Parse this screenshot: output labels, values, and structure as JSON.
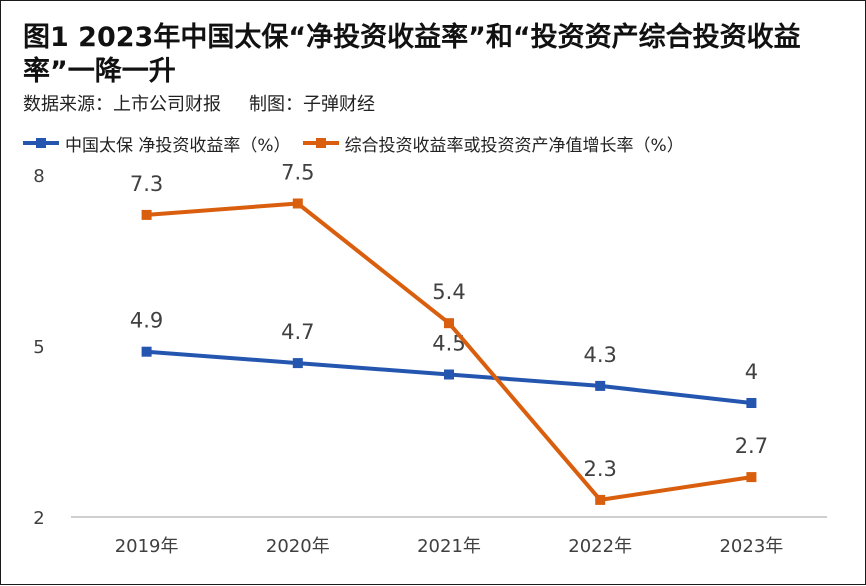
{
  "title": "图1 2023年中国太保“净投资收益率”和“投资资产综合投资收益率”一降一升",
  "source": "数据来源：上市公司财报",
  "author": "制图：子弹财经",
  "colors": {
    "series1": "#2456b0",
    "series2": "#d95f0e",
    "axis": "#bfbfbf",
    "text": "#404040"
  },
  "chart_data": {
    "type": "line",
    "categories": [
      "2019年",
      "2020年",
      "2021年",
      "2022年",
      "2023年"
    ],
    "series": [
      {
        "name": "中国太保 净投资收益率（%）",
        "values": [
          4.9,
          4.7,
          4.5,
          4.3,
          4
        ],
        "labels": [
          "4.9",
          "4.7",
          "4.5",
          "4.3",
          "4"
        ],
        "marker": "square"
      },
      {
        "name": "综合投资收益率或投资资产净值增长率（%）",
        "values": [
          7.3,
          7.5,
          5.4,
          2.3,
          2.7
        ],
        "labels": [
          "7.3",
          "7.5",
          "5.4",
          "2.3",
          "2.7"
        ],
        "marker": "square"
      }
    ],
    "ylim": [
      2,
      8
    ],
    "yticks": [
      2,
      5,
      8
    ],
    "ytick_labels": [
      "2",
      "5",
      "8"
    ],
    "grid": false,
    "legend": "top-left"
  }
}
